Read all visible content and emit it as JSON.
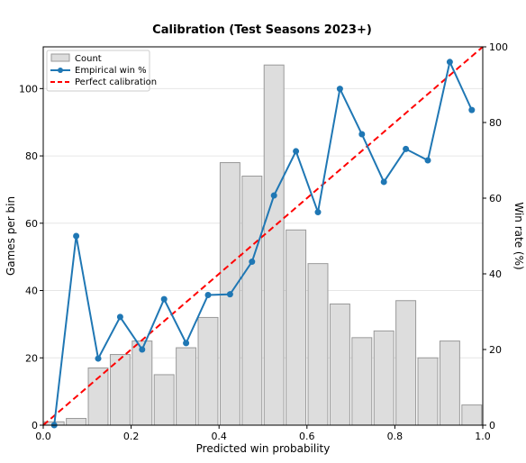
{
  "chart_data": {
    "type": "bar",
    "title": "Calibration (Test Seasons 2023+)",
    "xlabel": "Predicted win probability",
    "ylabel": "Games per bin",
    "y2label": "Win rate (%)",
    "xlim": [
      0.0,
      1.0
    ],
    "ylim": [
      0,
      112.4
    ],
    "y2lim": [
      0,
      100
    ],
    "xticks": [
      "0.0",
      "0.2",
      "0.4",
      "0.6",
      "0.8",
      "1.0"
    ],
    "yticks": [
      "0",
      "20",
      "40",
      "60",
      "80",
      "100"
    ],
    "y2ticks": [
      "0",
      "20",
      "40",
      "60",
      "80",
      "100"
    ],
    "grid": true,
    "legend_position": "top-left",
    "bar_series": {
      "name": "Count",
      "bin_centers": [
        0.025,
        0.075,
        0.125,
        0.175,
        0.225,
        0.275,
        0.325,
        0.375,
        0.425,
        0.475,
        0.525,
        0.575,
        0.625,
        0.675,
        0.725,
        0.775,
        0.825,
        0.875,
        0.925,
        0.975
      ],
      "values": [
        1,
        2,
        17,
        21,
        25,
        15,
        23,
        32,
        78,
        74,
        107,
        58,
        48,
        36,
        26,
        28,
        37,
        20,
        25,
        6
      ],
      "color": "#dddddd"
    },
    "line_series": {
      "name": "Empirical win %",
      "x": [
        0.025,
        0.075,
        0.125,
        0.175,
        0.225,
        0.275,
        0.325,
        0.375,
        0.425,
        0.475,
        0.525,
        0.575,
        0.625,
        0.675,
        0.725,
        0.775,
        0.825,
        0.875,
        0.925,
        0.975
      ],
      "y": [
        0,
        50,
        17.6,
        28.6,
        20,
        33.3,
        21.7,
        34.4,
        34.6,
        43.2,
        60.7,
        72.4,
        56.3,
        88.9,
        76.9,
        64.3,
        73,
        70,
        96,
        83.3
      ],
      "color": "#1f77b4"
    },
    "reference_series": {
      "name": "Perfect calibration",
      "x": [
        0,
        1
      ],
      "y": [
        0,
        100
      ],
      "color": "#ff0000"
    }
  }
}
